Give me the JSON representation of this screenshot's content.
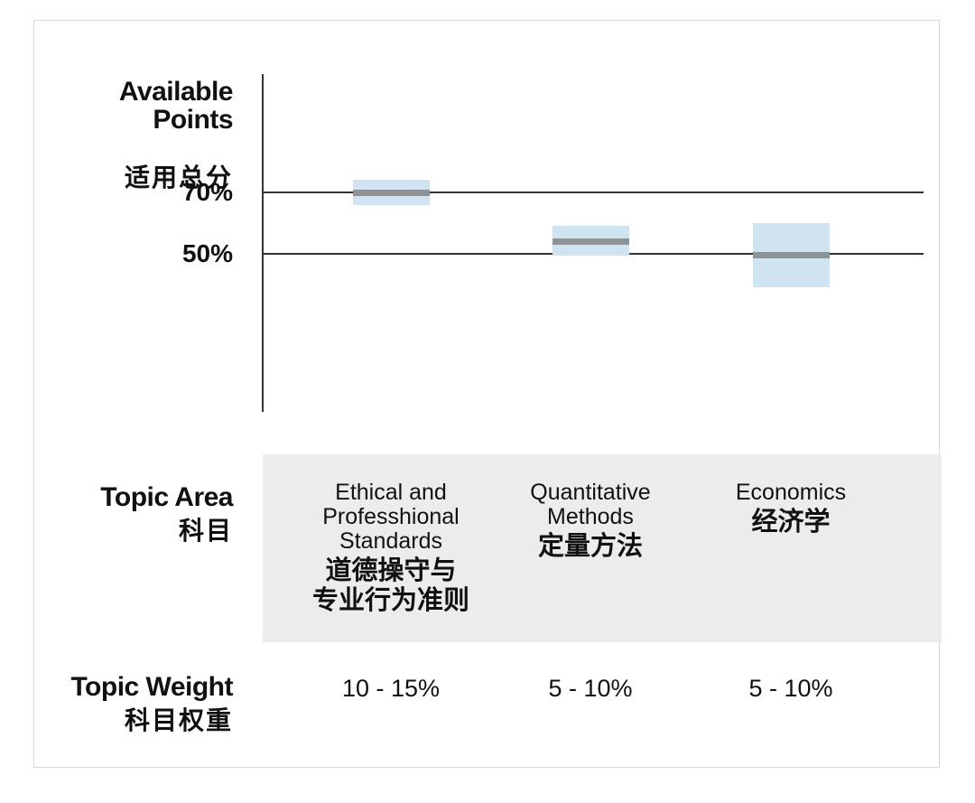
{
  "chart_data": {
    "type": "box-range",
    "title": "",
    "ylabel_en": "Available\nPoints",
    "ylabel_cn": "适用总分",
    "yticks": [
      {
        "label": "70%",
        "value": 70
      },
      {
        "label": "50%",
        "value": 50
      }
    ],
    "categories": [
      "Ethical and Professhional Standards 道德操守与专业行为准则",
      "Quantitative Methods 定量方法",
      "Economics 经济学"
    ],
    "series": [
      {
        "name": "Ethical and Professhional Standards",
        "low": 66,
        "high": 74,
        "median": 70
      },
      {
        "name": "Quantitative Methods",
        "low": 49.5,
        "high": 59,
        "median": 54
      },
      {
        "name": "Economics",
        "low": 39,
        "high": 60,
        "median": 49.5
      }
    ],
    "colors": {
      "range_fill": "#cfe4f0",
      "median_line": "#8d9296",
      "axis_line": "#333333",
      "panel_bg": "#ececec"
    },
    "grid": "horizontal-ticks-only",
    "legend": "none"
  },
  "rows": {
    "topic_area": {
      "en": "Topic Area",
      "cn": "科目"
    },
    "topic_weight": {
      "en": "Topic Weight",
      "cn": "科目权重"
    }
  },
  "columns": [
    {
      "english_lines": "Ethical and\nProfesshional\nStandards",
      "chinese_lines": "道德操守与\n专业行为准则",
      "weight": "10 - 15%"
    },
    {
      "english_lines": "Quantitative\nMethods",
      "chinese_lines": "定量方法",
      "weight": "5 - 10%"
    },
    {
      "english_lines": "Economics",
      "chinese_lines": "经济学",
      "weight": "5 - 10%"
    }
  ]
}
